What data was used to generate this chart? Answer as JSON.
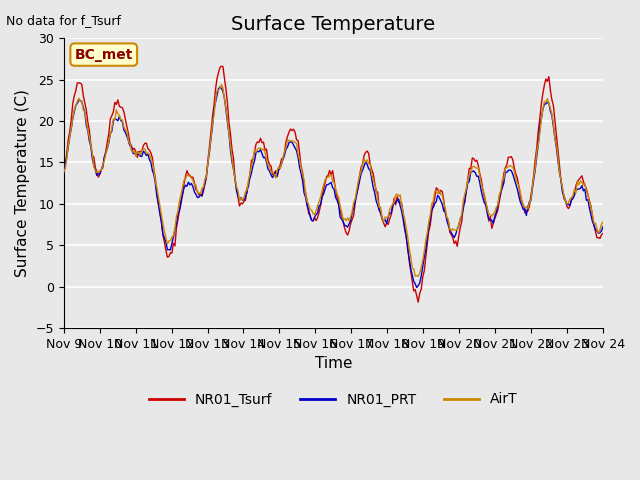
{
  "title": "Surface Temperature",
  "xlabel": "Time",
  "ylabel": "Surface Temperature (C)",
  "top_left_text": "No data for f_Tsurf",
  "annotation_text": "BC_met",
  "ylim": [
    -5,
    30
  ],
  "yticks": [
    -5,
    0,
    5,
    10,
    15,
    20,
    25,
    30
  ],
  "xtick_labels": [
    "Nov 9",
    "Nov 10",
    "Nov 11",
    "Nov 12",
    "Nov 13",
    "Nov 14",
    "Nov 15",
    "Nov 16",
    "Nov 17",
    "Nov 18",
    "Nov 19",
    "Nov 20",
    "Nov 21",
    "Nov 22",
    "Nov 23",
    "Nov 24"
  ],
  "legend_entries": [
    "NR01_Tsurf",
    "NR01_PRT",
    "AirT"
  ],
  "line_colors": [
    "#cc0000",
    "#0000cc",
    "#cc8800"
  ],
  "background_color": "#e8e8e8",
  "plot_bg_color": "#e8e8e8",
  "grid_color": "#ffffff",
  "annotation_bg": "#ffffcc",
  "annotation_border": "#cc8800",
  "annotation_text_color": "#8b0000",
  "title_fontsize": 14,
  "axis_label_fontsize": 11,
  "tick_fontsize": 9,
  "legend_fontsize": 10
}
